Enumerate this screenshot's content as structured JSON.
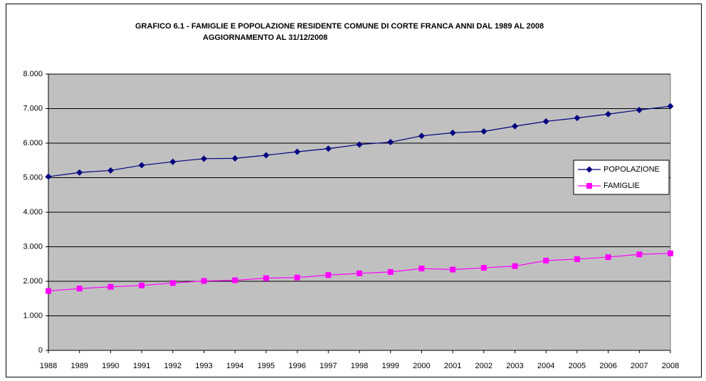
{
  "chart_data": {
    "type": "line",
    "title": "GRAFICO 6.1 - FAMIGLIE E POPOLAZIONE RESIDENTE COMUNE DI CORTE FRANCA ANNI DAL 1989 AL 2008",
    "subtitle": "AGGIORNAMENTO AL 31/12/2008",
    "categories": [
      "1988",
      "1989",
      "1990",
      "1991",
      "1992",
      "1993",
      "1994",
      "1995",
      "1996",
      "1997",
      "1998",
      "1999",
      "2000",
      "2001",
      "2002",
      "2003",
      "2004",
      "2005",
      "2006",
      "2007",
      "2008"
    ],
    "series": [
      {
        "name": "POPOLAZIONE",
        "color": "#000080",
        "marker": "diamond",
        "values": [
          5030,
          5150,
          5210,
          5360,
          5460,
          5550,
          5560,
          5650,
          5750,
          5840,
          5960,
          6030,
          6210,
          6300,
          6340,
          6490,
          6630,
          6730,
          6840,
          6960,
          7070
        ]
      },
      {
        "name": "FAMIGLIE",
        "color": "#ff00ff",
        "marker": "square",
        "values": [
          1720,
          1790,
          1840,
          1880,
          1950,
          2010,
          2030,
          2090,
          2110,
          2180,
          2230,
          2270,
          2370,
          2340,
          2390,
          2440,
          2600,
          2640,
          2700,
          2780,
          2810
        ]
      }
    ],
    "ylim": [
      0,
      8000
    ],
    "yticks": [
      0,
      {
        "value": 1000,
        "label": "1.000"
      },
      {
        "value": 2000,
        "label": "2.000"
      },
      {
        "value": 3000,
        "label": "3.000"
      },
      {
        "value": 4000,
        "label": "4.000"
      },
      {
        "value": 5000,
        "label": "5.000"
      },
      {
        "value": 6000,
        "label": "6.000"
      },
      {
        "value": 7000,
        "label": "7.000"
      },
      {
        "value": 8000,
        "label": "8.000"
      }
    ],
    "grid": true,
    "plot_background": "#c0c0c0",
    "legend": "right"
  }
}
